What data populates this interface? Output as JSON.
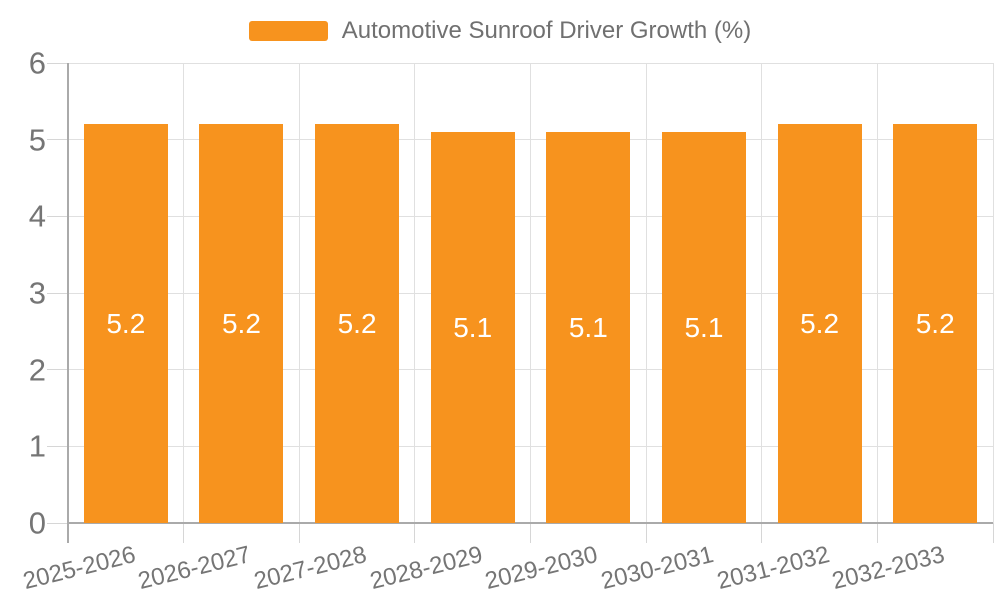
{
  "chart_data": {
    "type": "bar",
    "title": "Automotive Sunroof Driver Growth (%)",
    "categories": [
      "2025-2026",
      "2026-2027",
      "2027-2028",
      "2028-2029",
      "2029-2030",
      "2030-2031",
      "2031-2032",
      "2032-2033"
    ],
    "values": [
      5.2,
      5.2,
      5.2,
      5.1,
      5.1,
      5.1,
      5.2,
      5.2
    ],
    "value_labels": [
      "5.2",
      "5.2",
      "5.2",
      "5.1",
      "5.1",
      "5.1",
      "5.2",
      "5.2"
    ],
    "xlabel": "",
    "ylabel": "",
    "ylim": [
      0,
      6
    ],
    "yticks": [
      "0",
      "1",
      "2",
      "3",
      "4",
      "5",
      "6"
    ],
    "grid": "on",
    "legend_position": "top-center",
    "colors": {
      "bar": "#F7931E",
      "value_label": "#FFFFFF",
      "axis_text": "#757575",
      "legend_text": "#707070",
      "gridline": "#E0E0E0",
      "tick": "#D6D6D6",
      "axis_line": "#AAAAAA",
      "background": "#FFFFFF"
    }
  }
}
